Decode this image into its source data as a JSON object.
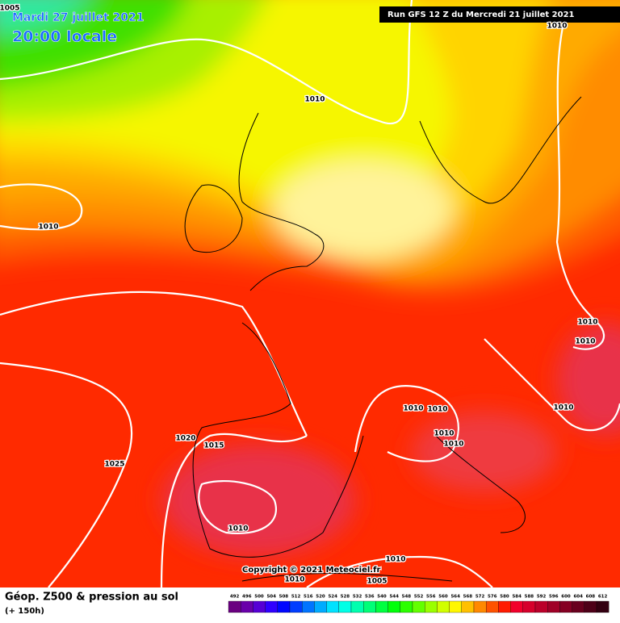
{
  "header": {
    "date": "Mardi 27 juillet 2021",
    "time": "20:00 locale",
    "run": "Run GFS 12 Z du Mercredi 21 juillet 2021"
  },
  "isobar_labels": [
    "1005",
    "1010",
    "1010",
    "1010",
    "1010",
    "1010",
    "1010",
    "1010",
    "1010",
    "1010",
    "1010",
    "1020",
    "1015",
    "1025",
    "1010",
    "1010",
    "1010",
    "1005"
  ],
  "copyright": "Copyright © 2021 Meteociel.fr",
  "footer": {
    "title": "Géop. Z500 & pression au sol",
    "subtitle": "(+ 150h)"
  },
  "colorbar": {
    "labels": [
      492,
      496,
      500,
      504,
      508,
      512,
      516,
      520,
      524,
      528,
      532,
      536,
      540,
      544,
      548,
      552,
      556,
      560,
      564,
      568,
      572,
      576,
      580,
      584,
      588,
      592,
      596,
      600,
      604,
      608,
      612
    ]
  }
}
